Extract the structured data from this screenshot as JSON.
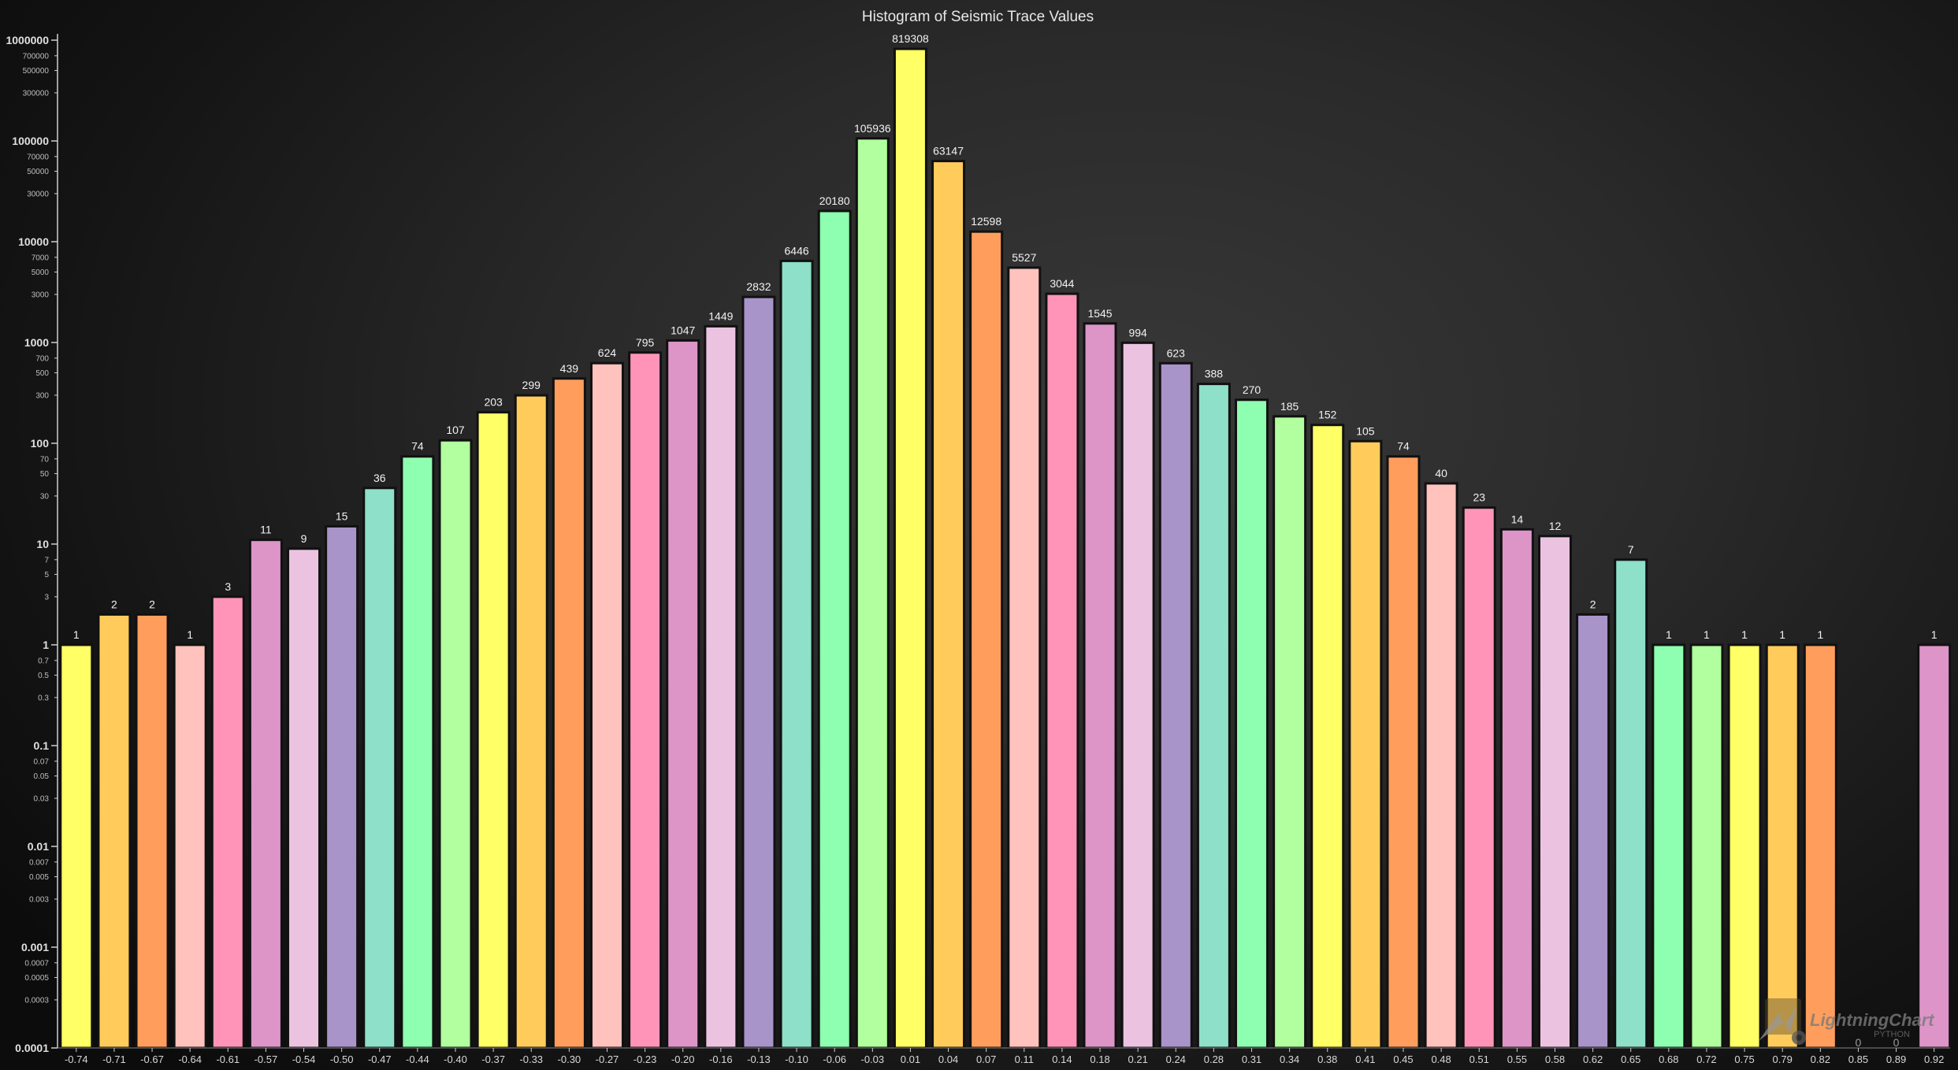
{
  "chart_data": {
    "type": "bar",
    "title": "Histogram of Seismic Trace Values",
    "xlabel": "",
    "ylabel": "",
    "y_scale": "log",
    "ylim": [
      0.0001,
      1000000
    ],
    "grid": false,
    "legend": "none",
    "categories": [
      "-0.74",
      "-0.71",
      "-0.67",
      "-0.64",
      "-0.61",
      "-0.57",
      "-0.54",
      "-0.50",
      "-0.47",
      "-0.44",
      "-0.40",
      "-0.37",
      "-0.33",
      "-0.30",
      "-0.27",
      "-0.23",
      "-0.20",
      "-0.16",
      "-0.13",
      "-0.10",
      "-0.06",
      "-0.03",
      "0.01",
      "0.04",
      "0.07",
      "0.11",
      "0.14",
      "0.18",
      "0.21",
      "0.24",
      "0.28",
      "0.31",
      "0.34",
      "0.38",
      "0.41",
      "0.45",
      "0.48",
      "0.51",
      "0.55",
      "0.58",
      "0.62",
      "0.65",
      "0.68",
      "0.72",
      "0.75",
      "0.79",
      "0.82",
      "0.85",
      "0.89",
      "0.92"
    ],
    "values": [
      1,
      2,
      2,
      1,
      3,
      11,
      9,
      15,
      36,
      74,
      107,
      203,
      299,
      439,
      624,
      795,
      1047,
      1449,
      2832,
      6446,
      20180,
      105936,
      819308,
      63147,
      12598,
      5527,
      3044,
      1545,
      994,
      623,
      388,
      270,
      185,
      152,
      105,
      74,
      40,
      23,
      14,
      12,
      2,
      7,
      1,
      1,
      1,
      1,
      1,
      0,
      0,
      1
    ],
    "data_labels": [
      "1",
      "2",
      "2",
      "1",
      "3",
      "11",
      "9",
      "15",
      "36",
      "74",
      "107",
      "203",
      "299",
      "439",
      "624",
      "795",
      "1047",
      "1449",
      "2832",
      "6446",
      "20180",
      "105936",
      "819308",
      "63147",
      "12598",
      "5527",
      "3044",
      "1545",
      "994",
      "623",
      "388",
      "270",
      "185",
      "152",
      "105",
      "74",
      "40",
      "23",
      "14",
      "12",
      "2",
      "7",
      "1",
      "1",
      "1",
      "1",
      "1",
      "0",
      "0",
      "1"
    ],
    "y_major_ticks": [
      "1000000",
      "100000",
      "10000",
      "1000",
      "100",
      "10",
      "1",
      "0.1",
      "0.01",
      "0.001",
      "0.0001"
    ],
    "y_minor_ticks": [
      "700000",
      "500000",
      "300000",
      "70000",
      "50000",
      "30000",
      "7000",
      "5000",
      "3000",
      "700",
      "500",
      "300",
      "70",
      "50",
      "30",
      "7",
      "5",
      "3",
      "0.7",
      "0.5",
      "0.3",
      "0.07",
      "0.05",
      "0.03",
      "0.007",
      "0.005",
      "0.003",
      "0.0007",
      "0.0005",
      "0.0003"
    ],
    "bar_colors": [
      "#ffff66",
      "#ffcc5c",
      "#ff9e5c",
      "#ffc2bd",
      "#ff94b8",
      "#dd95c8",
      "#ebc3e0",
      "#a994c9",
      "#8ee0c8",
      "#8effb0",
      "#b1ff9e"
    ],
    "axis_color": "#cfcfcf"
  },
  "watermark": {
    "name": "LightningChart",
    "sub": "PYTHON"
  }
}
